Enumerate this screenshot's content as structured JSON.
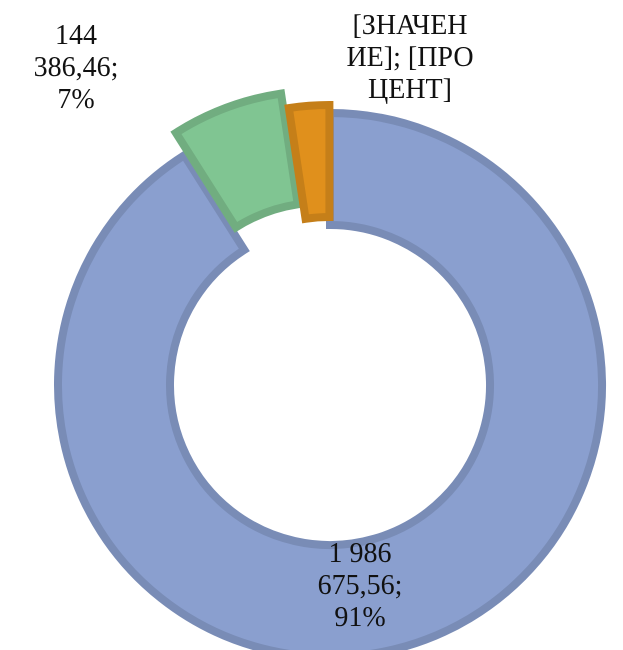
{
  "chart_data": {
    "type": "doughnut",
    "categories": [
      null,
      null,
      null
    ],
    "values": [
      1986675.56,
      144386.46,
      52000
    ],
    "value_labels": [
      "1 986 675,56; 91%",
      "144 386,46; 7%",
      "[ЗНАЧЕНИЕ]; [ПРОЦЕНТ]"
    ],
    "colors": [
      "#8a9fcf",
      "#80c592",
      "#e0901c"
    ]
  }
}
